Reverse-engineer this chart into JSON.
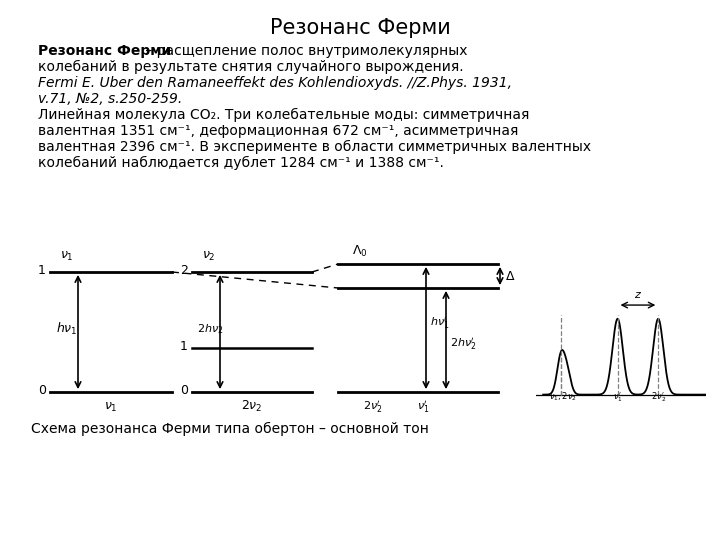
{
  "title": "Резонанс Ферми",
  "title_fontsize": 16,
  "background_color": "#ffffff",
  "text_block1_bold": "Резонанс Ферми",
  "caption": "Схема резонанса Ферми типа обертон – основной тон"
}
